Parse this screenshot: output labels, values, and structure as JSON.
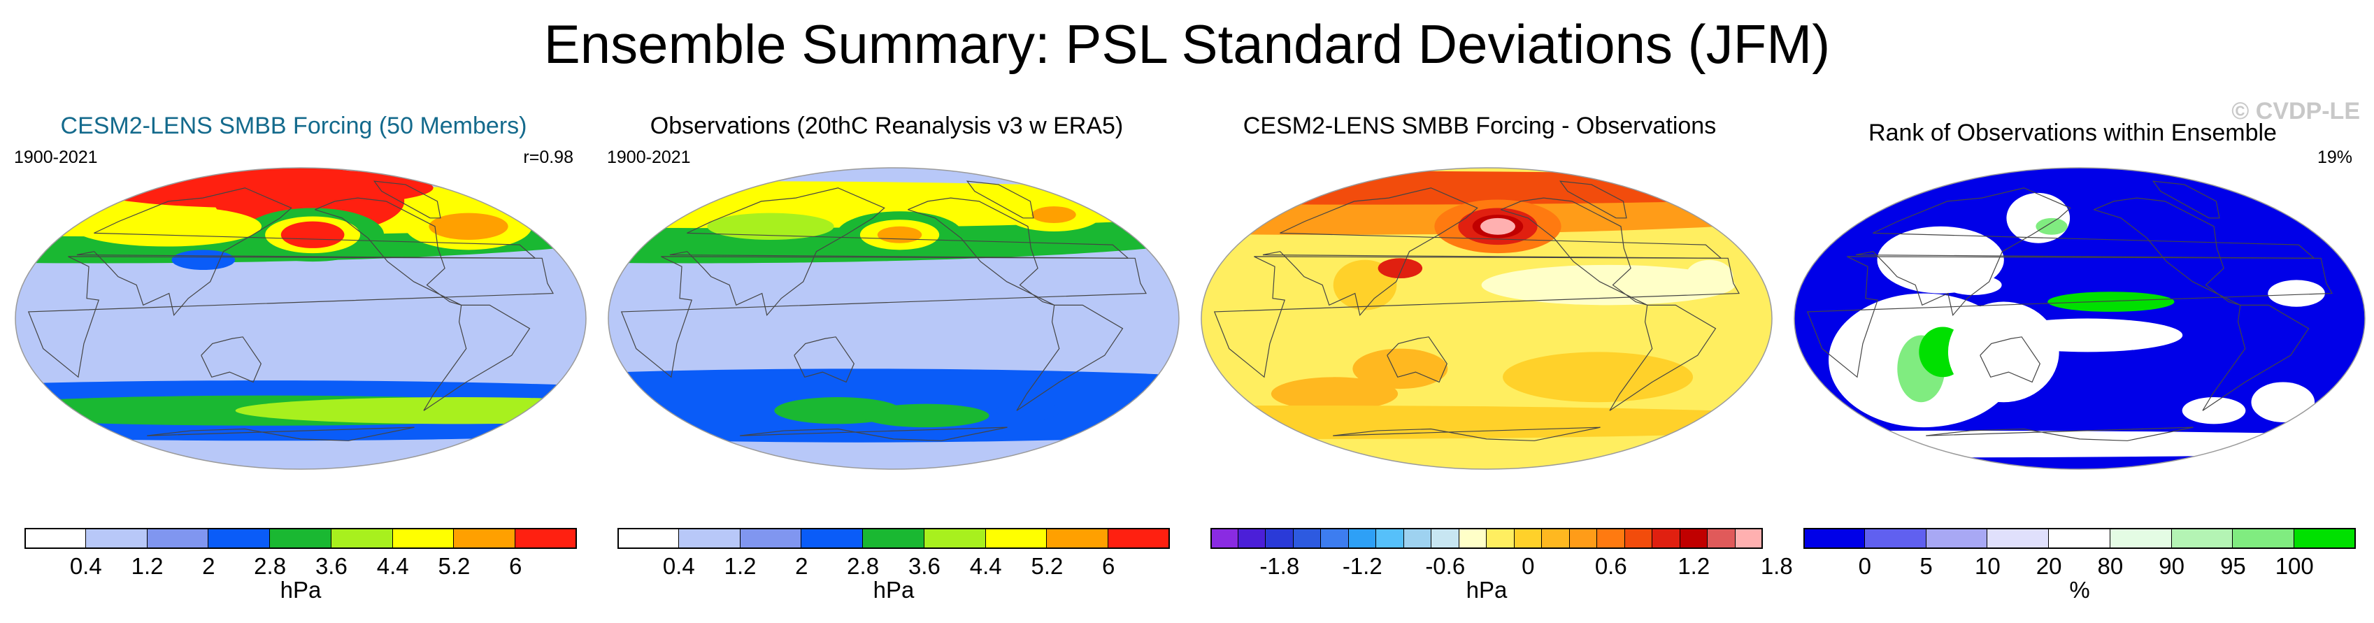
{
  "main_title": "Ensemble Summary: PSL Standard Deviations (JFM)",
  "watermark": "© CVDP-LE",
  "chart_data": [
    {
      "type": "heatmap",
      "title": "CESM2-LENS SMBB Forcing (50 Members)",
      "title_color": "#146a8c",
      "left_label": "1900-2021",
      "right_label": "r=0.98",
      "colorbar": {
        "colors": [
          "#ffffff",
          "#b8c8f8",
          "#8096f0",
          "#0a5cf8",
          "#1ab832",
          "#a8f01e",
          "#ffff00",
          "#ffa000",
          "#ff2010"
        ],
        "tick_labels": [
          "0.4",
          "1.2",
          "2",
          "2.8",
          "3.6",
          "4.4",
          "5.2",
          "6"
        ],
        "unit": "hPa"
      },
      "field": {
        "background_class": 1,
        "blobs": [
          {
            "lon": 150,
            "lat": -55,
            "rlon": 360,
            "rlat": 18,
            "class": 3
          },
          {
            "lon": 150,
            "lat": -55,
            "rlon": 200,
            "rlat": 9,
            "class": 4
          },
          {
            "lon": -40,
            "lat": -55,
            "rlon": 140,
            "rlat": 8,
            "class": 5
          },
          {
            "lon": 0,
            "lat": 55,
            "rlon": 360,
            "rlat": 22,
            "class": 4
          },
          {
            "lon": 0,
            "lat": 65,
            "rlon": 360,
            "rlat": 16,
            "class": 6
          },
          {
            "lon": -170,
            "lat": 70,
            "rlon": 60,
            "rlat": 20,
            "class": 8
          },
          {
            "lon": 120,
            "lat": 78,
            "rlon": 110,
            "rlat": 12,
            "class": 8
          },
          {
            "lon": -170,
            "lat": 50,
            "rlon": 45,
            "rlat": 16,
            "class": 4
          },
          {
            "lon": -170,
            "lat": 50,
            "rlon": 30,
            "rlat": 11,
            "class": 6
          },
          {
            "lon": -170,
            "lat": 50,
            "rlon": 20,
            "rlat": 8,
            "class": 8
          },
          {
            "lon": -30,
            "lat": 55,
            "rlon": 40,
            "rlat": 14,
            "class": 6
          },
          {
            "lon": -30,
            "lat": 55,
            "rlon": 25,
            "rlat": 8,
            "class": 7
          },
          {
            "lon": 60,
            "lat": 55,
            "rlon": 60,
            "rlat": 12,
            "class": 6
          },
          {
            "lon": 110,
            "lat": 35,
            "rlon": 20,
            "rlat": 6,
            "class": 3
          }
        ]
      }
    },
    {
      "type": "heatmap",
      "title": "Observations (20thC Reanalysis v3 w ERA5)",
      "left_label": "1900-2021",
      "right_label": "",
      "colorbar": {
        "colors": [
          "#ffffff",
          "#b8c8f8",
          "#8096f0",
          "#0a5cf8",
          "#1ab832",
          "#a8f01e",
          "#ffff00",
          "#ffa000",
          "#ff2010"
        ],
        "tick_labels": [
          "0.4",
          "1.2",
          "2",
          "2.8",
          "3.6",
          "4.4",
          "5.2",
          "6"
        ],
        "unit": "hPa"
      },
      "field": {
        "background_class": 1,
        "blobs": [
          {
            "lon": 150,
            "lat": -52,
            "rlon": 360,
            "rlat": 22,
            "class": 3
          },
          {
            "lon": 130,
            "lat": -55,
            "rlon": 40,
            "rlat": 8,
            "class": 4
          },
          {
            "lon": -150,
            "lat": -58,
            "rlon": 40,
            "rlat": 7,
            "class": 4
          },
          {
            "lon": -60,
            "lat": -55,
            "rlon": 20,
            "rlat": 6,
            "class": 3
          },
          {
            "lon": 0,
            "lat": 55,
            "rlon": 360,
            "rlat": 22,
            "class": 4
          },
          {
            "lon": 0,
            "lat": 68,
            "rlon": 360,
            "rlat": 14,
            "class": 6
          },
          {
            "lon": -175,
            "lat": 50,
            "rlon": 40,
            "rlat": 14,
            "class": 4
          },
          {
            "lon": -175,
            "lat": 50,
            "rlon": 25,
            "rlat": 9,
            "class": 6
          },
          {
            "lon": -175,
            "lat": 50,
            "rlon": 14,
            "rlat": 5,
            "class": 7
          },
          {
            "lon": -20,
            "lat": 62,
            "rlon": 30,
            "rlat": 10,
            "class": 6
          },
          {
            "lon": -20,
            "lat": 62,
            "rlon": 14,
            "rlat": 5,
            "class": 7
          },
          {
            "lon": 80,
            "lat": 70,
            "rlon": 60,
            "rlat": 10,
            "class": 6
          },
          {
            "lon": 70,
            "lat": 55,
            "rlon": 40,
            "rlat": 8,
            "class": 5
          }
        ]
      }
    },
    {
      "type": "heatmap",
      "title": "CESM2-LENS SMBB Forcing - Observations",
      "left_label": "",
      "right_label": "",
      "colorbar": {
        "colors": [
          "#8a2be2",
          "#4b1fd8",
          "#2a3ad8",
          "#2d5ae0",
          "#3d7df0",
          "#2ea0f6",
          "#56c0fa",
          "#9ed2f0",
          "#c8e6f2",
          "#ffffc8",
          "#ffee60",
          "#ffd12a",
          "#ffb820",
          "#ff9c18",
          "#ff7a10",
          "#f24c0c",
          "#e02010",
          "#c00000",
          "#e05a5a",
          "#ffb0b0"
        ],
        "tick_labels": [
          "-1.8",
          "-1.2",
          "-0.6",
          "0",
          "0.6",
          "1.2",
          "1.8"
        ],
        "tick_positions": [
          2.5,
          5.5,
          8.5,
          11.5,
          14.5,
          17.5,
          20.5
        ],
        "unit": "hPa"
      },
      "field": {
        "background_class": 10,
        "blobs": [
          {
            "lon": 0,
            "lat": 68,
            "rlon": 360,
            "rlat": 18,
            "class": 13
          },
          {
            "lon": 0,
            "lat": 78,
            "rlon": 360,
            "rlat": 10,
            "class": 15
          },
          {
            "lon": -170,
            "lat": 55,
            "rlon": 40,
            "rlat": 16,
            "class": 14
          },
          {
            "lon": -170,
            "lat": 55,
            "rlon": 25,
            "rlat": 11,
            "class": 16
          },
          {
            "lon": -170,
            "lat": 55,
            "rlon": 16,
            "rlat": 7,
            "class": 17
          },
          {
            "lon": -170,
            "lat": 55,
            "rlon": 11,
            "rlat": 5,
            "class": 19
          },
          {
            "lon": 120,
            "lat": -30,
            "rlon": 30,
            "rlat": 12,
            "class": 12
          },
          {
            "lon": -100,
            "lat": -35,
            "rlon": 60,
            "rlat": 15,
            "class": 11
          },
          {
            "lon": 60,
            "lat": -45,
            "rlon": 40,
            "rlat": 10,
            "class": 12
          },
          {
            "lon": 0,
            "lat": -62,
            "rlon": 360,
            "rlat": 10,
            "class": 11
          },
          {
            "lon": -100,
            "lat": 20,
            "rlon": 80,
            "rlat": 12,
            "class": 9
          },
          {
            "lon": -30,
            "lat": 25,
            "rlon": 15,
            "rlat": 10,
            "class": 9
          },
          {
            "lon": 100,
            "lat": 20,
            "rlon": 20,
            "rlat": 15,
            "class": 11
          },
          {
            "lon": 120,
            "lat": 30,
            "rlon": 14,
            "rlat": 6,
            "class": 16
          }
        ]
      }
    },
    {
      "type": "heatmap",
      "title": "Rank of Observations within Ensemble",
      "left_label": "",
      "right_label": "19%",
      "colorbar": {
        "colors": [
          "#0000e8",
          "#6060f0",
          "#a8a8f4",
          "#e0e0fc",
          "#ffffff",
          "#e4fce4",
          "#b4f4b4",
          "#80ec80",
          "#00e000"
        ],
        "tick_labels": [
          "0",
          "5",
          "10",
          "20",
          "80",
          "90",
          "95",
          "100"
        ],
        "unit": "%"
      },
      "field": {
        "background_class": 0,
        "blobs": [
          {
            "lon": 75,
            "lat": -25,
            "rlon": 60,
            "rlat": 40,
            "class": 4
          },
          {
            "lon": 70,
            "lat": -30,
            "rlon": 15,
            "rlat": 20,
            "class": 7
          },
          {
            "lon": 90,
            "lat": -20,
            "rlon": 15,
            "rlat": 15,
            "class": 8
          },
          {
            "lon": -175,
            "lat": -10,
            "rlon": 60,
            "rlat": 10,
            "class": 4
          },
          {
            "lon": -160,
            "lat": 10,
            "rlon": 40,
            "rlat": 6,
            "class": 8
          },
          {
            "lon": 110,
            "lat": 20,
            "rlon": 18,
            "rlat": 6,
            "class": 4
          },
          {
            "lon": 130,
            "lat": -20,
            "rlon": 35,
            "rlat": 30,
            "class": 4
          },
          {
            "lon": 0,
            "lat": -75,
            "rlon": 360,
            "rlat": 8,
            "class": 4
          },
          {
            "lon": -10,
            "lat": -50,
            "rlon": 20,
            "rlat": 12,
            "class": 4
          },
          {
            "lon": -60,
            "lat": -55,
            "rlon": 20,
            "rlat": 8,
            "class": 4
          },
          {
            "lon": 140,
            "lat": 60,
            "rlon": 20,
            "rlat": 15,
            "class": 4
          },
          {
            "lon": 155,
            "lat": 55,
            "rlon": 10,
            "rlat": 5,
            "class": 7
          },
          {
            "lon": -40,
            "lat": 15,
            "rlon": 18,
            "rlat": 8,
            "class": 4
          },
          {
            "lon": 80,
            "lat": 35,
            "rlon": 40,
            "rlat": 20,
            "class": 4
          }
        ]
      }
    }
  ]
}
